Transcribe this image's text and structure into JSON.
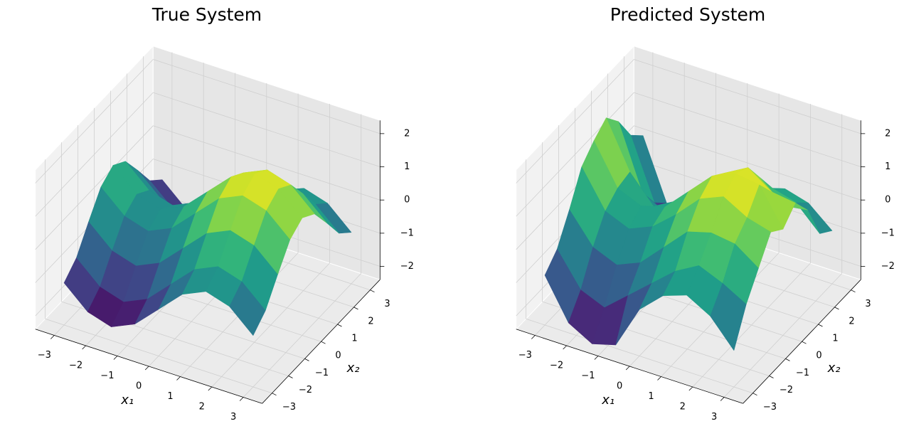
{
  "chart_data": [
    {
      "type": "surface",
      "title": "True System",
      "xlabel": "x₁",
      "ylabel": "x₂",
      "x": [
        -3,
        -2.25,
        -1.5,
        -0.75,
        0,
        0.75,
        1.5,
        2.25,
        3
      ],
      "y": [
        -3,
        -2.25,
        -1.5,
        -0.75,
        0,
        0.75,
        1.5,
        2.25,
        3
      ],
      "z": [
        [
          -1.13,
          -1.77,
          -1.99,
          -1.67,
          -0.99,
          -0.31,
          0.01,
          -0.21,
          -0.85
        ],
        [
          -0.77,
          -1.41,
          -1.63,
          -1.31,
          -0.63,
          0.05,
          0.37,
          0.15,
          -0.49
        ],
        [
          -0.07,
          -0.71,
          -0.93,
          -0.61,
          0.07,
          0.75,
          1.07,
          0.85,
          0.21
        ],
        [
          0.59,
          -0.05,
          -0.27,
          0.05,
          0.73,
          1.41,
          1.73,
          1.51,
          0.87
        ],
        [
          0.86,
          0.22,
          0,
          0.32,
          1,
          1.68,
          2,
          1.78,
          1.14
        ],
        [
          0.59,
          -0.05,
          -0.27,
          0.05,
          0.73,
          1.41,
          1.73,
          1.51,
          0.87
        ],
        [
          -0.07,
          -0.71,
          -0.93,
          -0.61,
          0.07,
          0.75,
          1.07,
          0.85,
          0.21
        ],
        [
          -0.77,
          -1.41,
          -1.63,
          -1.31,
          -0.63,
          0.05,
          0.37,
          0.15,
          -0.49
        ],
        [
          -1.13,
          -1.77,
          -1.99,
          -1.67,
          -0.99,
          -0.31,
          0.01,
          -0.21,
          -0.85
        ]
      ],
      "xlim": [
        -3.6,
        3.6
      ],
      "ylim": [
        -3.6,
        3.6
      ],
      "zlim": [
        -2.4,
        2.4
      ],
      "xticks": [
        {
          "value": -3,
          "label": "−3"
        },
        {
          "value": -2,
          "label": "−2"
        },
        {
          "value": -1,
          "label": "−1"
        },
        0,
        1,
        2,
        3
      ],
      "yticks": [
        {
          "value": -3,
          "label": "−3"
        },
        {
          "value": -2,
          "label": "−2"
        },
        {
          "value": -1,
          "label": "−1"
        },
        0,
        1,
        2,
        3
      ],
      "zticks": [
        {
          "value": -2,
          "label": "−2"
        },
        {
          "value": -1,
          "label": "−1"
        },
        0,
        1,
        2
      ],
      "colormap": [
        "#440154",
        "#482878",
        "#3e4989",
        "#31688e",
        "#26828e",
        "#1f9e89",
        "#35b779",
        "#6ece58",
        "#b5de2b",
        "#fde725"
      ]
    },
    {
      "type": "surface",
      "title": "Predicted System",
      "xlabel": "x₁",
      "ylabel": "x₂",
      "x": [
        -3,
        -2.25,
        -1.5,
        -0.75,
        0,
        0.75,
        1.5,
        2.25,
        3
      ],
      "y": [
        -3,
        -2.25,
        -1.5,
        -0.75,
        0,
        0.75,
        1.5,
        2.25,
        3
      ],
      "z": [
        [
          -0.9,
          -2.1,
          -2.5,
          -2.3,
          -1.0,
          -0.35,
          -0.1,
          -0.5,
          -1.3
        ],
        [
          -0.5,
          -1.5,
          -1.8,
          -1.2,
          -0.6,
          0.0,
          0.4,
          0.1,
          -0.3
        ],
        [
          0.3,
          -0.6,
          -0.9,
          -0.6,
          0.1,
          0.8,
          1.0,
          0.9,
          0.4
        ],
        [
          1.2,
          0.1,
          -0.2,
          0.1,
          0.7,
          1.4,
          1.7,
          1.3,
          1.1
        ],
        [
          1.6,
          0.4,
          0.1,
          0.3,
          1.0,
          1.7,
          2.0,
          1.9,
          0.8
        ],
        [
          1.9,
          0.5,
          -0.3,
          0.1,
          0.7,
          1.4,
          1.8,
          1.3,
          1.2
        ],
        [
          1.4,
          -0.5,
          -0.9,
          -0.6,
          0.1,
          0.7,
          1.1,
          0.5,
          0.6
        ],
        [
          0.6,
          -1.2,
          -1.6,
          -1.3,
          -0.6,
          0.1,
          0.4,
          0.2,
          -0.5
        ],
        [
          0.2,
          -1.6,
          -2.0,
          -1.7,
          -1.0,
          -0.3,
          0.0,
          -0.2,
          -0.8
        ]
      ],
      "xlim": [
        -3.6,
        3.6
      ],
      "ylim": [
        -3.6,
        3.6
      ],
      "zlim": [
        -2.4,
        2.4
      ],
      "xticks": [
        {
          "value": -3,
          "label": "−3"
        },
        {
          "value": -2,
          "label": "−2"
        },
        {
          "value": -1,
          "label": "−1"
        },
        0,
        1,
        2,
        3
      ],
      "yticks": [
        {
          "value": -3,
          "label": "−3"
        },
        {
          "value": -2,
          "label": "−2"
        },
        {
          "value": -1,
          "label": "−1"
        },
        0,
        1,
        2,
        3
      ],
      "zticks": [
        {
          "value": -2,
          "label": "−2"
        },
        {
          "value": -1,
          "label": "−1"
        },
        0,
        1,
        2
      ],
      "colormap": [
        "#440154",
        "#482878",
        "#3e4989",
        "#31688e",
        "#26828e",
        "#1f9e89",
        "#35b779",
        "#6ece58",
        "#b5de2b",
        "#fde725"
      ]
    }
  ]
}
